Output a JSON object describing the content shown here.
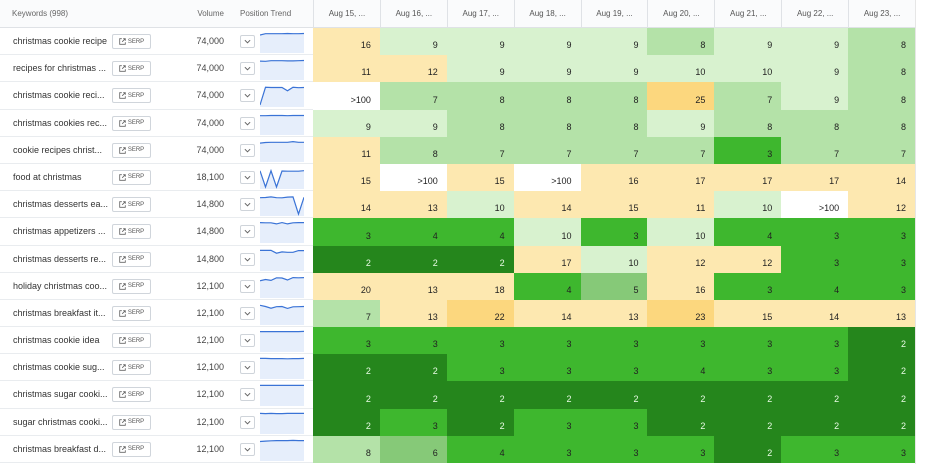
{
  "header": {
    "keywords_label": "Keywords (998)",
    "volume_label": "Volume",
    "trend_label": "Position Trend",
    "dates": [
      "Aug 15, ...",
      "Aug 16, ...",
      "Aug 17, ...",
      "Aug 18, ...",
      "Aug 19, ...",
      "Aug 20, ...",
      "Aug 21, ...",
      "Aug 22, ...",
      "Aug 23, ..."
    ]
  },
  "serp_label": "SERP",
  "rows": [
    {
      "keyword": "christmas cookie recipe",
      "volume": "74,000",
      "positions": [
        "16",
        "9",
        "9",
        "9",
        "9",
        "8",
        "9",
        "9",
        "8"
      ]
    },
    {
      "keyword": "recipes for christmas ...",
      "volume": "74,000",
      "positions": [
        "11",
        "12",
        "9",
        "9",
        "9",
        "10",
        "10",
        "9",
        "8"
      ]
    },
    {
      "keyword": "christmas cookie reci...",
      "volume": "74,000",
      "positions": [
        ">100",
        "7",
        "8",
        "8",
        "8",
        "25",
        "7",
        "9",
        "8"
      ]
    },
    {
      "keyword": "christmas cookies rec...",
      "volume": "74,000",
      "positions": [
        "9",
        "9",
        "8",
        "8",
        "8",
        "9",
        "8",
        "8",
        "8"
      ]
    },
    {
      "keyword": "cookie recipes christ...",
      "volume": "74,000",
      "positions": [
        "11",
        "8",
        "7",
        "7",
        "7",
        "7",
        "3",
        "7",
        "7"
      ]
    },
    {
      "keyword": "food at christmas",
      "volume": "18,100",
      "positions": [
        "15",
        ">100",
        "15",
        ">100",
        "16",
        "17",
        "17",
        "17",
        "14"
      ]
    },
    {
      "keyword": "christmas desserts ea...",
      "volume": "14,800",
      "positions": [
        "14",
        "13",
        "10",
        "14",
        "15",
        "11",
        "10",
        ">100",
        "12"
      ]
    },
    {
      "keyword": "christmas appetizers ...",
      "volume": "14,800",
      "positions": [
        "3",
        "4",
        "4",
        "10",
        "3",
        "10",
        "4",
        "3",
        "3"
      ]
    },
    {
      "keyword": "christmas desserts re...",
      "volume": "14,800",
      "positions": [
        "2",
        "2",
        "2",
        "17",
        "10",
        "12",
        "12",
        "3",
        "3"
      ]
    },
    {
      "keyword": "holiday christmas coo...",
      "volume": "12,100",
      "positions": [
        "20",
        "13",
        "18",
        "4",
        "5",
        "16",
        "3",
        "4",
        "3"
      ]
    },
    {
      "keyword": "christmas breakfast it...",
      "volume": "12,100",
      "positions": [
        "7",
        "13",
        "22",
        "14",
        "13",
        "23",
        "15",
        "14",
        "13"
      ]
    },
    {
      "keyword": "christmas cookie idea",
      "volume": "12,100",
      "positions": [
        "3",
        "3",
        "3",
        "3",
        "3",
        "3",
        "3",
        "3",
        "2"
      ]
    },
    {
      "keyword": "christmas cookie sug...",
      "volume": "12,100",
      "positions": [
        "2",
        "2",
        "3",
        "3",
        "3",
        "4",
        "3",
        "3",
        "2"
      ]
    },
    {
      "keyword": "christmas sugar cooki...",
      "volume": "12,100",
      "positions": [
        "2",
        "2",
        "2",
        "2",
        "2",
        "2",
        "2",
        "2",
        "2"
      ]
    },
    {
      "keyword": "sugar christmas cooki...",
      "volume": "12,100",
      "positions": [
        "2",
        "3",
        "2",
        "3",
        "3",
        "2",
        "2",
        "2",
        "2"
      ]
    },
    {
      "keyword": "christmas breakfast d...",
      "volume": "12,100",
      "positions": [
        "8",
        "6",
        "4",
        "3",
        "3",
        "3",
        "2",
        "3",
        "3"
      ]
    }
  ],
  "colors": {
    "rank_1_2": "#25861c",
    "rank_3_4": "#3eb72e",
    "rank_5_6": "#86c978",
    "rank_7_8": "#b4e2a8",
    "rank_9_10": "#d8f2cf",
    "rank_11_20": "#fde8b0",
    "rank_21_plus": "#fcd77e",
    "not_ranked": "#ffffff",
    "sparkline": "#3a73d6"
  },
  "icons": {
    "serp": "external-link-icon",
    "dropdown": "chevron-down-icon",
    "trend": "sparkline"
  }
}
